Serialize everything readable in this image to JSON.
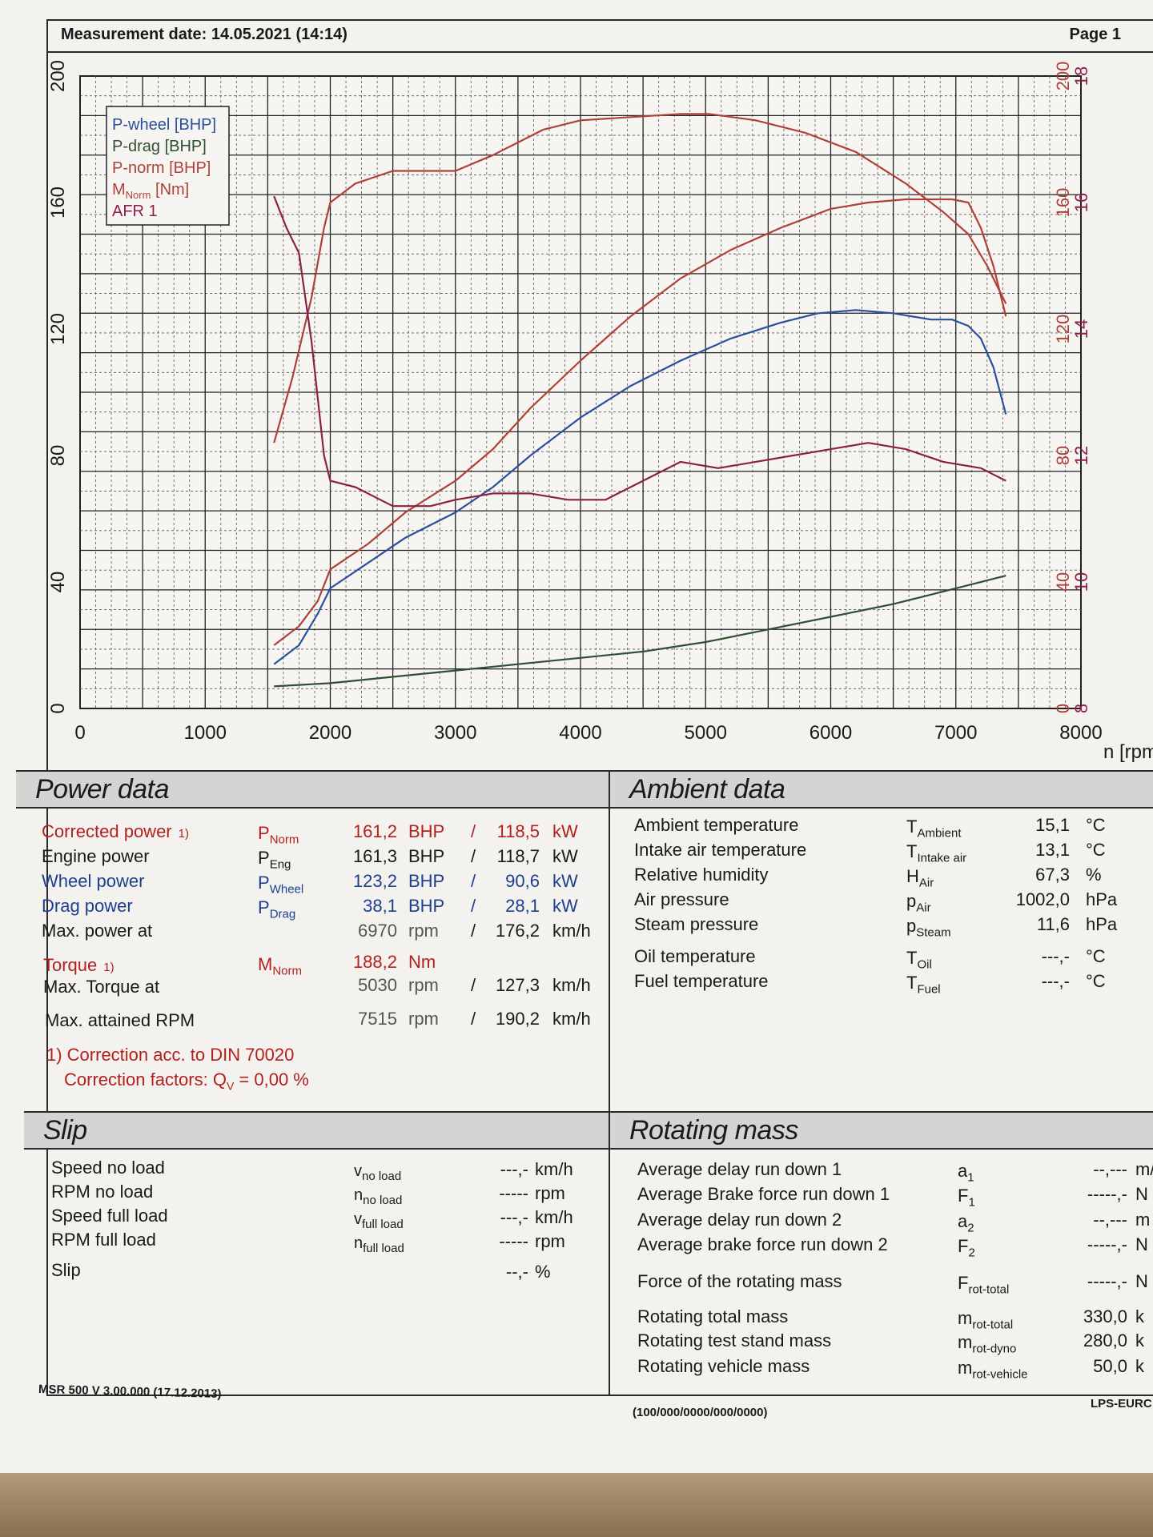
{
  "header": {
    "measurement_date": "Measurement date: 14.05.2021 (14:14)",
    "page": "Page 1"
  },
  "chart_data": {
    "type": "line",
    "x_axis": {
      "label": "n [rpm",
      "range": [
        0,
        8000
      ],
      "ticks": [
        "0",
        "1000",
        "2000",
        "3000",
        "4000",
        "5000",
        "6000",
        "7000",
        "8000"
      ]
    },
    "y_axis_left": {
      "range": [
        0,
        200
      ],
      "ticks": [
        "0",
        "40",
        "80",
        "120",
        "160",
        "200"
      ]
    },
    "y_axis_right_power": {
      "range": [
        0,
        200
      ],
      "ticks": [
        "0",
        "40",
        "80",
        "120",
        "160",
        "200"
      ]
    },
    "y_axis_right_afr": {
      "range": [
        8,
        18
      ],
      "ticks": [
        "8",
        "10",
        "12",
        "14",
        "16",
        "18"
      ]
    },
    "grid": true,
    "legend_position": "top-left",
    "legend": [
      {
        "label": "P-wheel [BHP]",
        "color": "#2a4f9e"
      },
      {
        "label": "P-drag [BHP]",
        "color": "#2f4f33"
      },
      {
        "label": "P-norm [BHP]",
        "color": "#b0403a"
      },
      {
        "label": "M",
        "sub": "Norm",
        "tail": " [Nm]",
        "color": "#b0403a"
      },
      {
        "label": "AFR 1",
        "color": "#8e1f47"
      }
    ],
    "series": [
      {
        "name": "P-wheel [BHP]",
        "color": "#2a4f9e",
        "axis": "left",
        "x": [
          1550,
          1750,
          1900,
          2000,
          2300,
          2600,
          3000,
          3300,
          3600,
          4000,
          4400,
          4800,
          5200,
          5600,
          5900,
          6200,
          6500,
          6800,
          6970,
          7100,
          7200,
          7300,
          7400
        ],
        "y": [
          14,
          20,
          30,
          38,
          46,
          54,
          62,
          70,
          80,
          92,
          102,
          110,
          117,
          122,
          125,
          126,
          125,
          123,
          123,
          121,
          117,
          108,
          93
        ]
      },
      {
        "name": "P-drag [BHP]",
        "color": "#2f4f33",
        "axis": "left",
        "x": [
          1550,
          2000,
          2500,
          3000,
          3500,
          4000,
          4500,
          5000,
          5500,
          6000,
          6500,
          7000,
          7400
        ],
        "y": [
          7,
          8,
          10,
          12,
          14,
          16,
          18,
          21,
          25,
          29,
          33,
          38,
          42
        ]
      },
      {
        "name": "P-norm [BHP]",
        "color": "#b0403a",
        "axis": "left",
        "x": [
          1550,
          1750,
          1900,
          2000,
          2300,
          2600,
          3000,
          3300,
          3600,
          4000,
          4400,
          4800,
          5200,
          5600,
          6000,
          6300,
          6600,
          6970,
          7100,
          7200,
          7300,
          7400
        ],
        "y": [
          20,
          26,
          34,
          44,
          52,
          62,
          72,
          82,
          95,
          110,
          124,
          136,
          145,
          152,
          158,
          160,
          161,
          161,
          160,
          152,
          140,
          124
        ]
      },
      {
        "name": "M",
        "color": "#b0403a",
        "axis": "right_power",
        "x": [
          1550,
          1700,
          1850,
          1950,
          2000,
          2200,
          2500,
          2800,
          3000,
          3300,
          3700,
          4000,
          4400,
          4800,
          5030,
          5400,
          5800,
          6200,
          6600,
          6900,
          7100,
          7250,
          7400
        ],
        "y": [
          84,
          105,
          130,
          152,
          160,
          166,
          170,
          170,
          170,
          175,
          183,
          186,
          187,
          188,
          188,
          186,
          182,
          176,
          166,
          157,
          150,
          140,
          128
        ]
      },
      {
        "name": "AFR 1",
        "color": "#8e1f47",
        "axis": "right_afr",
        "x": [
          1550,
          1650,
          1750,
          1850,
          1950,
          2000,
          2200,
          2500,
          2800,
          3000,
          3300,
          3600,
          3900,
          4200,
          4500,
          4800,
          5100,
          5400,
          5700,
          6000,
          6300,
          6600,
          6900,
          7200,
          7300,
          7400
        ],
        "y": [
          16.1,
          15.6,
          15.2,
          13.8,
          12.0,
          11.6,
          11.5,
          11.2,
          11.2,
          11.3,
          11.4,
          11.4,
          11.3,
          11.3,
          11.6,
          11.9,
          11.8,
          11.9,
          12.0,
          12.1,
          12.2,
          12.1,
          11.9,
          11.8,
          11.7,
          11.6
        ]
      }
    ]
  },
  "power": {
    "title": "Power data",
    "rows": [
      {
        "label": "Corrected power",
        "mark": "1)",
        "sym": "P",
        "sub": "Norm",
        "v1": "161,2",
        "u1": "BHP",
        "sep": "/",
        "v2": "118,5",
        "u2": "kW"
      },
      {
        "label": "Engine power",
        "sym": "P",
        "sub": "Eng",
        "v1": "161,3",
        "u1": "BHP",
        "sep": "/",
        "v2": "118,7",
        "u2": "kW"
      },
      {
        "label": "Wheel power",
        "sym": "P",
        "sub": "Wheel",
        "v1": "123,2",
        "u1": "BHP",
        "sep": "/",
        "v2": "90,6",
        "u2": "kW"
      },
      {
        "label": "Drag power",
        "sym": "P",
        "sub": "Drag",
        "v1": "38,1",
        "u1": "BHP",
        "sep": "/",
        "v2": "28,1",
        "u2": "kW"
      },
      {
        "label": "Max. power at",
        "v1": "6970",
        "u1": "rpm",
        "sep": "/",
        "v2": "176,2",
        "u2": "km/h"
      }
    ],
    "torque": {
      "label": "Torque",
      "mark": "1)",
      "sym": "M",
      "sub": "Norm",
      "v1": "188,2",
      "u1": "Nm"
    },
    "max_torque": {
      "label": "Max. Torque at",
      "v1": "5030",
      "u1": "rpm",
      "sep": "/",
      "v2": "127,3",
      "u2": "km/h"
    },
    "max_rpm": {
      "label": "Max. attained RPM",
      "v1": "7515",
      "u1": "rpm",
      "sep": "/",
      "v2": "190,2",
      "u2": "km/h"
    },
    "note1": "1) Correction acc. to DIN 70020",
    "note2_prefix": "Correction factors: Q",
    "note2_sub": "V",
    "note2_value": " =   0,00 %"
  },
  "ambient": {
    "title": "Ambient data",
    "rows": [
      {
        "label": "Ambient temperature",
        "sym": "T",
        "sub": "Ambient",
        "value": "15,1",
        "unit": "°C"
      },
      {
        "label": "Intake air temperature",
        "sym": "T",
        "sub": "Intake air",
        "value": "13,1",
        "unit": "°C"
      },
      {
        "label": "Relative humidity",
        "sym": "H",
        "sub": "Air",
        "value": "67,3",
        "unit": "%"
      },
      {
        "label": "Air pressure",
        "sym": "p",
        "sub": "Air",
        "value": "1002,0",
        "unit": "hPa"
      },
      {
        "label": "Steam pressure",
        "sym": "p",
        "sub": "Steam",
        "value": "11,6",
        "unit": "hPa"
      },
      {
        "label": "Oil temperature",
        "sym": "T",
        "sub": "Oil",
        "value": "---,-",
        "unit": "°C"
      },
      {
        "label": "Fuel temperature",
        "sym": "T",
        "sub": "Fuel",
        "value": "---,-",
        "unit": "°C"
      }
    ]
  },
  "slip": {
    "title": "Slip",
    "rows": [
      {
        "label": "Speed no load",
        "sym": "v",
        "sub": "no load",
        "value": "---,-",
        "unit": "km/h"
      },
      {
        "label": "RPM no load",
        "sym": "n",
        "sub": "no load",
        "value": "-----",
        "unit": "rpm"
      },
      {
        "label": "Speed full load",
        "sym": "v",
        "sub": "full load",
        "value": "---,-",
        "unit": "km/h"
      },
      {
        "label": "RPM full load",
        "sym": "n",
        "sub": "full load",
        "value": "-----",
        "unit": "rpm"
      },
      {
        "label": "Slip",
        "value": "--,-",
        "unit": "%"
      }
    ]
  },
  "rotating": {
    "title": "Rotating mass",
    "rows": [
      {
        "label": "Average delay run down 1",
        "sym": "a",
        "sub": "1",
        "value": "--,---",
        "unit": "m/"
      },
      {
        "label": "Average Brake force run down 1",
        "sym": "F",
        "sub": "1",
        "value": "-----,-",
        "unit": "N"
      },
      {
        "label": "Average delay run down 2",
        "sym": "a",
        "sub": "2",
        "value": "--,---",
        "unit": "m"
      },
      {
        "label": "Average brake force run down 2",
        "sym": "F",
        "sub": "2",
        "value": "-----,-",
        "unit": "N"
      },
      {
        "label": "Force of the rotating mass",
        "sym": "F",
        "sub": "rot-total",
        "value": "-----,-",
        "unit": "N"
      },
      {
        "label": "Rotating total mass",
        "sym": "m",
        "sub": "rot-total",
        "value": "330,0",
        "unit": "k"
      },
      {
        "label": "Rotating test stand mass",
        "sym": "m",
        "sub": "rot-dyno",
        "value": "280,0",
        "unit": "k"
      },
      {
        "label": "Rotating vehicle mass",
        "sym": "m",
        "sub": "rot-vehicle",
        "value": "50,0",
        "unit": "k"
      }
    ]
  },
  "footer": {
    "version": "MSR 500 V 3.00.000 (17.12.2013)",
    "code": "(100/000/0000/000/0000)",
    "brand": "LPS-EURC"
  }
}
